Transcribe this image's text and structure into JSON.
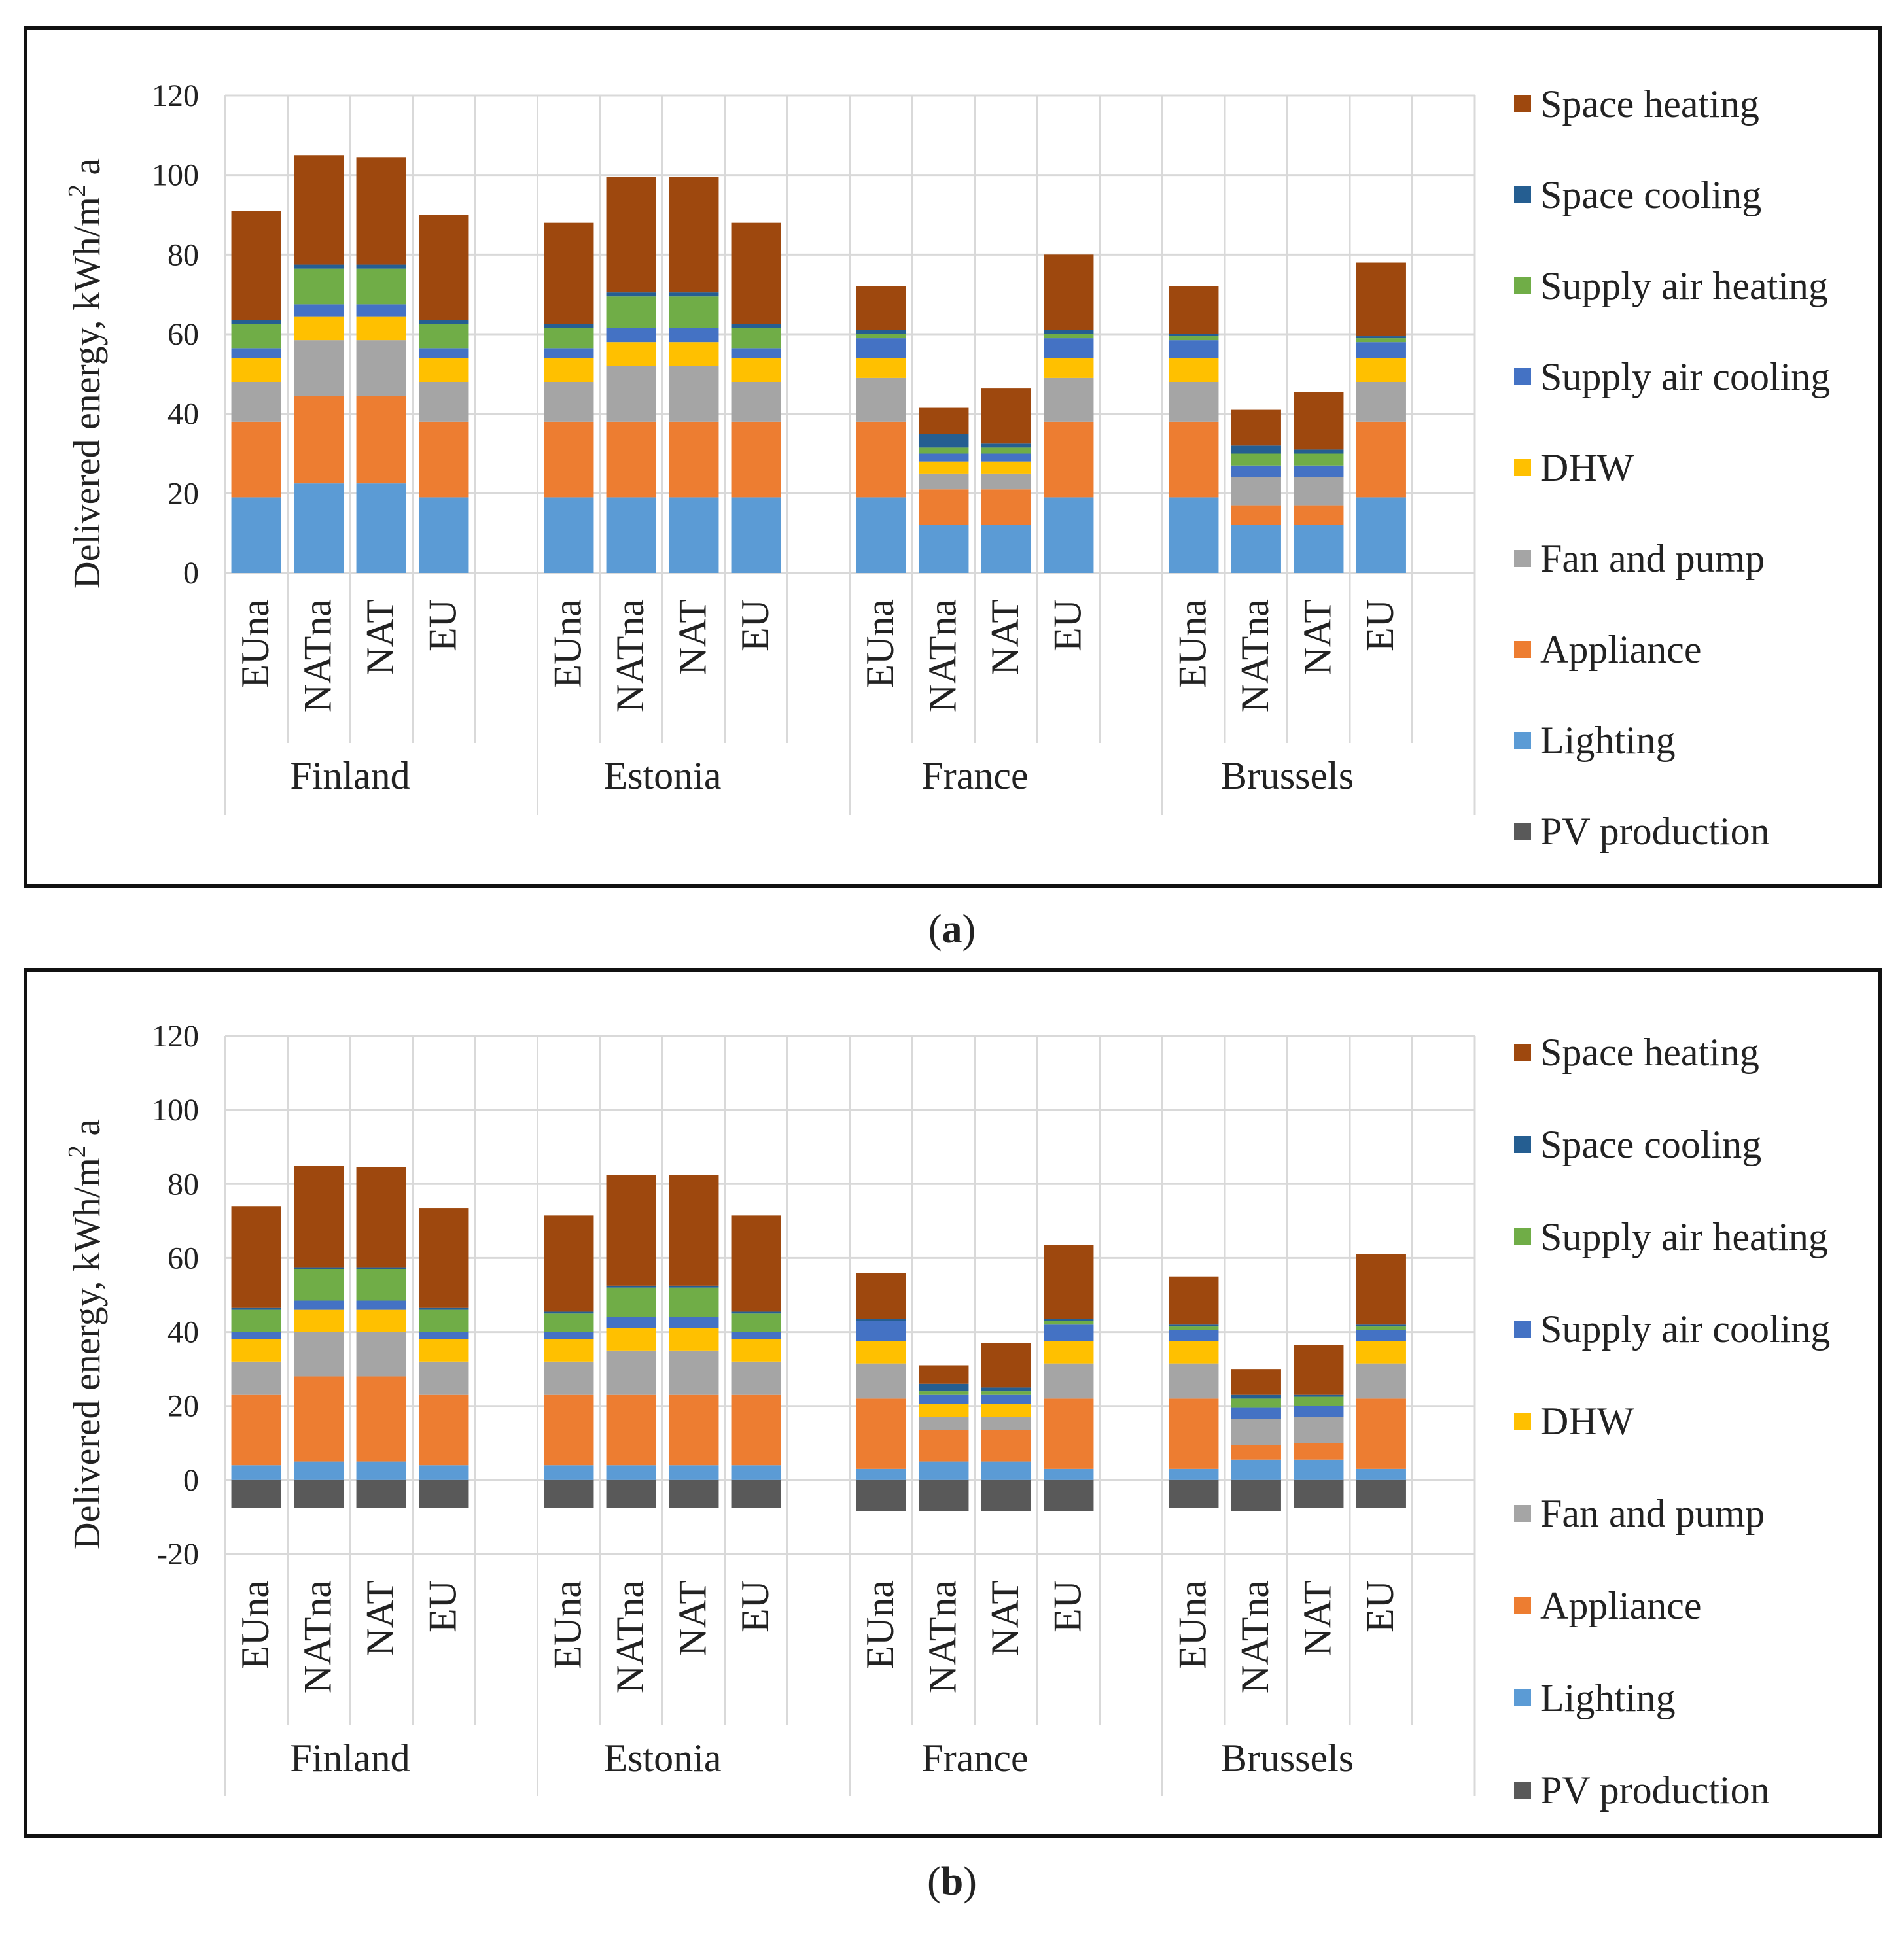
{
  "figure": {
    "label_a": "a",
    "label_b": "b"
  },
  "chart_data": [
    {
      "type": "bar",
      "panel": "a",
      "stacked": true,
      "ylabel": "Delivered energy, kWh/m² a",
      "ylabel_main": "Delivered  energy,  kWh/m",
      "ylabel_sup": "2",
      "ylabel_end": " a",
      "ylim": [
        0,
        120
      ],
      "yticks": [
        0,
        20,
        40,
        60,
        80,
        100,
        120
      ],
      "groups": [
        "Finland",
        "Estonia",
        "France",
        "Brussels"
      ],
      "categories": [
        "EUna",
        "NATna",
        "NAT",
        "EU"
      ],
      "legend_position": "right",
      "series": [
        {
          "name": "PV production",
          "color": "#595959",
          "values": [
            [
              0,
              0,
              0,
              0
            ],
            [
              0,
              0,
              0,
              0
            ],
            [
              0,
              0,
              0,
              0
            ],
            [
              0,
              0,
              0,
              0
            ]
          ]
        },
        {
          "name": "Lighting",
          "color": "#5B9BD5",
          "values": [
            [
              19,
              22.5,
              22.5,
              19
            ],
            [
              19,
              19,
              19,
              19
            ],
            [
              19,
              12,
              12,
              19
            ],
            [
              19,
              12,
              12,
              19
            ]
          ]
        },
        {
          "name": "Appliance",
          "color": "#ED7D31",
          "values": [
            [
              19,
              22,
              22,
              19
            ],
            [
              19,
              19,
              19,
              19
            ],
            [
              19,
              9,
              9,
              19
            ],
            [
              19,
              5,
              5,
              19
            ]
          ]
        },
        {
          "name": "Fan and pump",
          "color": "#A5A5A5",
          "values": [
            [
              10,
              14,
              14,
              10
            ],
            [
              10,
              14,
              14,
              10
            ],
            [
              11,
              4,
              4,
              11
            ],
            [
              10,
              7,
              7,
              10
            ]
          ]
        },
        {
          "name": "DHW",
          "color": "#FFC000",
          "values": [
            [
              6,
              6,
              6,
              6
            ],
            [
              6,
              6,
              6,
              6
            ],
            [
              5,
              3,
              3,
              5
            ],
            [
              6,
              0,
              0,
              6
            ]
          ]
        },
        {
          "name": "Supply air cooling",
          "color": "#4472C4",
          "values": [
            [
              2.5,
              3,
              3,
              2.5
            ],
            [
              2.5,
              3.5,
              3.5,
              2.5
            ],
            [
              5,
              2,
              2,
              5
            ],
            [
              4.5,
              3,
              3,
              4
            ]
          ]
        },
        {
          "name": "Supply air heating",
          "color": "#70AD47",
          "values": [
            [
              6,
              9,
              9,
              6
            ],
            [
              5,
              8,
              8,
              5
            ],
            [
              1,
              1.5,
              1.5,
              1
            ],
            [
              1,
              3,
              3,
              1
            ]
          ]
        },
        {
          "name": "Space cooling",
          "color": "#255E91",
          "values": [
            [
              1,
              1,
              1,
              1
            ],
            [
              1,
              1,
              1,
              1
            ],
            [
              1,
              3.5,
              1,
              1
            ],
            [
              0.5,
              2,
              1,
              0.5
            ]
          ]
        },
        {
          "name": "Space heating",
          "color": "#9E480E",
          "values": [
            [
              27.5,
              27.5,
              27,
              26.5
            ],
            [
              25.5,
              29,
              29,
              25.5
            ],
            [
              11,
              6.5,
              14,
              19
            ],
            [
              12,
              9,
              14.5,
              18.5
            ]
          ]
        }
      ]
    },
    {
      "type": "bar",
      "panel": "b",
      "stacked": true,
      "ylabel": "Delivered energy, kWh/m² a",
      "ylabel_main": "Delivered  energy,  kWh/m",
      "ylabel_sup": "2",
      "ylabel_end": " a",
      "ylim": [
        -20,
        120
      ],
      "yticks": [
        -20,
        0,
        20,
        40,
        60,
        80,
        100,
        120
      ],
      "groups": [
        "Finland",
        "Estonia",
        "France",
        "Brussels"
      ],
      "categories": [
        "EUna",
        "NATna",
        "NAT",
        "EU"
      ],
      "legend_position": "right",
      "series": [
        {
          "name": "PV production",
          "color": "#595959",
          "values": [
            [
              -7.5,
              -7.5,
              -7.5,
              -7.5
            ],
            [
              -7.5,
              -7.5,
              -7.5,
              -7.5
            ],
            [
              -8.5,
              -8.5,
              -8.5,
              -8.5
            ],
            [
              -7.5,
              -8.5,
              -7.5,
              -7.5
            ]
          ]
        },
        {
          "name": "Lighting",
          "color": "#5B9BD5",
          "values": [
            [
              4,
              5,
              5,
              4
            ],
            [
              4,
              4,
              4,
              4
            ],
            [
              3,
              5,
              5,
              3
            ],
            [
              3,
              5.5,
              5.5,
              3
            ]
          ]
        },
        {
          "name": "Appliance",
          "color": "#ED7D31",
          "values": [
            [
              19,
              23,
              23,
              19
            ],
            [
              19,
              19,
              19,
              19
            ],
            [
              19,
              8.5,
              8.5,
              19
            ],
            [
              19,
              4,
              4.5,
              19
            ]
          ]
        },
        {
          "name": "Fan and pump",
          "color": "#A5A5A5",
          "values": [
            [
              9,
              12,
              12,
              9
            ],
            [
              9,
              12,
              12,
              9
            ],
            [
              9.5,
              3.5,
              3.5,
              9.5
            ],
            [
              9.5,
              7,
              7,
              9.5
            ]
          ]
        },
        {
          "name": "DHW",
          "color": "#FFC000",
          "values": [
            [
              6,
              6,
              6,
              6
            ],
            [
              6,
              6,
              6,
              6
            ],
            [
              6,
              3.5,
              3.5,
              6
            ],
            [
              6,
              0,
              0,
              6
            ]
          ]
        },
        {
          "name": "Supply air cooling",
          "color": "#4472C4",
          "values": [
            [
              2,
              2.5,
              2.5,
              2
            ],
            [
              2,
              3,
              3,
              2
            ],
            [
              5.5,
              2.5,
              2.5,
              4.5
            ],
            [
              3,
              3,
              3,
              3
            ]
          ]
        },
        {
          "name": "Supply air heating",
          "color": "#70AD47",
          "values": [
            [
              6,
              8.5,
              8.5,
              6
            ],
            [
              5,
              8,
              8,
              5
            ],
            [
              0,
              1,
              1,
              1
            ],
            [
              1,
              2.5,
              2.5,
              1
            ]
          ]
        },
        {
          "name": "Space cooling",
          "color": "#255E91",
          "values": [
            [
              0.5,
              0.5,
              0.5,
              0.5
            ],
            [
              0.5,
              0.5,
              0.5,
              0.5
            ],
            [
              0.5,
              2,
              1,
              0.5
            ],
            [
              0.5,
              1,
              0.5,
              0.5
            ]
          ]
        },
        {
          "name": "Space heating",
          "color": "#9E480E",
          "values": [
            [
              27.5,
              27.5,
              27,
              27
            ],
            [
              26,
              30,
              30,
              26
            ],
            [
              12.5,
              5,
              12,
              20
            ],
            [
              13,
              7,
              13.5,
              19
            ]
          ]
        }
      ]
    }
  ],
  "legend_order": [
    "Space heating",
    "Space cooling",
    "Supply air heating",
    "Supply air cooling",
    "DHW",
    "Fan and pump",
    "Appliance",
    "Lighting",
    "PV production"
  ]
}
